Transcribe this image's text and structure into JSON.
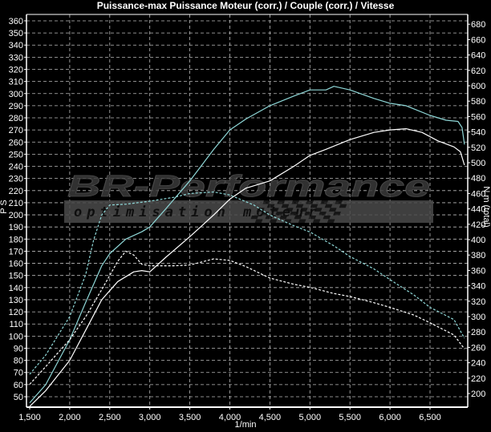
{
  "chart_data": {
    "type": "line",
    "title": "Puissance-max Puissance Moteur (corr.) / Couple (corr.) / Vitesse",
    "xlabel": "1/min",
    "ylabel_left": "P S",
    "ylabel_right": "N m (total)",
    "xlim": [
      1500,
      6940
    ],
    "ylim_left": [
      40,
      367
    ],
    "ylim_right": [
      185,
      680
    ],
    "x_ticks": [
      1500,
      2000,
      2500,
      3000,
      3500,
      4000,
      4500,
      5000,
      5500,
      6000,
      6500
    ],
    "x_tick_labels": [
      "1,500",
      "2,000",
      "2,500",
      "3,000",
      "3,500",
      "4,000",
      "4,500",
      "5,000",
      "5,500",
      "6,000",
      "6,500"
    ],
    "y_left_ticks": [
      50,
      60,
      70,
      80,
      90,
      100,
      110,
      120,
      130,
      140,
      150,
      160,
      170,
      180,
      190,
      200,
      210,
      220,
      230,
      240,
      250,
      260,
      270,
      280,
      290,
      300,
      310,
      320,
      330,
      340,
      350,
      360
    ],
    "y_right_ticks": [
      200,
      220,
      240,
      260,
      280,
      300,
      320,
      340,
      360,
      380,
      400,
      420,
      440,
      460,
      480,
      500,
      520,
      540,
      560,
      580,
      600,
      620,
      640,
      660,
      680
    ],
    "grid": true,
    "background": "#000000",
    "series": [
      {
        "axis": "left",
        "style": "solid",
        "color": "#8fd8d8",
        "x": [
          1500,
          1700,
          2000,
          2200,
          2400,
          2500,
          2700,
          2900,
          3000,
          3200,
          3500,
          3800,
          4000,
          4200,
          4500,
          4800,
          5000,
          5200,
          5300,
          5500,
          5800,
          6000,
          6200,
          6500,
          6700,
          6850,
          6900,
          6930
        ],
        "y": [
          45,
          60,
          97,
          128,
          158,
          168,
          180,
          186,
          190,
          205,
          228,
          254,
          270,
          279,
          290,
          298,
          303,
          303,
          306,
          303,
          296,
          292,
          290,
          282,
          278,
          277,
          272,
          258
        ]
      },
      {
        "axis": "left",
        "style": "solid",
        "color": "#ffffff",
        "x": [
          1500,
          1700,
          2000,
          2200,
          2400,
          2600,
          2800,
          2900,
          3000,
          3200,
          3500,
          3800,
          4000,
          4200,
          4500,
          4800,
          5000,
          5200,
          5500,
          5800,
          6000,
          6200,
          6400,
          6600,
          6800,
          6880,
          6930
        ],
        "y": [
          42,
          55,
          80,
          105,
          130,
          145,
          153,
          154,
          153,
          165,
          182,
          200,
          213,
          222,
          228,
          240,
          249,
          254,
          262,
          268,
          270,
          271,
          268,
          261,
          256,
          252,
          241
        ]
      },
      {
        "axis": "right",
        "style": "dashed",
        "color": "#8fd8d8",
        "x": [
          1500,
          1700,
          2000,
          2200,
          2300,
          2400,
          2500,
          2700,
          3000,
          3300,
          3500,
          3800,
          4000,
          4300,
          4500,
          4800,
          5000,
          5300,
          5500,
          5800,
          6000,
          6300,
          6500,
          6800,
          6930
        ],
        "y": [
          225,
          250,
          300,
          355,
          400,
          432,
          445,
          446,
          450,
          455,
          460,
          462,
          458,
          445,
          432,
          418,
          410,
          392,
          378,
          362,
          348,
          328,
          312,
          296,
          272
        ]
      },
      {
        "axis": "right",
        "style": "dashed",
        "color": "#ffffff",
        "x": [
          1500,
          1700,
          2000,
          2200,
          2400,
          2600,
          2700,
          2800,
          2900,
          3000,
          3300,
          3500,
          3800,
          4000,
          4200,
          4500,
          4800,
          5000,
          5300,
          5500,
          5800,
          6000,
          6300,
          6500,
          6800,
          6930
        ],
        "y": [
          212,
          235,
          270,
          300,
          335,
          372,
          385,
          380,
          368,
          366,
          366,
          367,
          375,
          373,
          365,
          350,
          342,
          338,
          330,
          326,
          318,
          312,
          302,
          292,
          276,
          258
        ]
      }
    ]
  },
  "watermark": {
    "brand": "BR-Performance",
    "tagline": "optimisation moteur"
  }
}
